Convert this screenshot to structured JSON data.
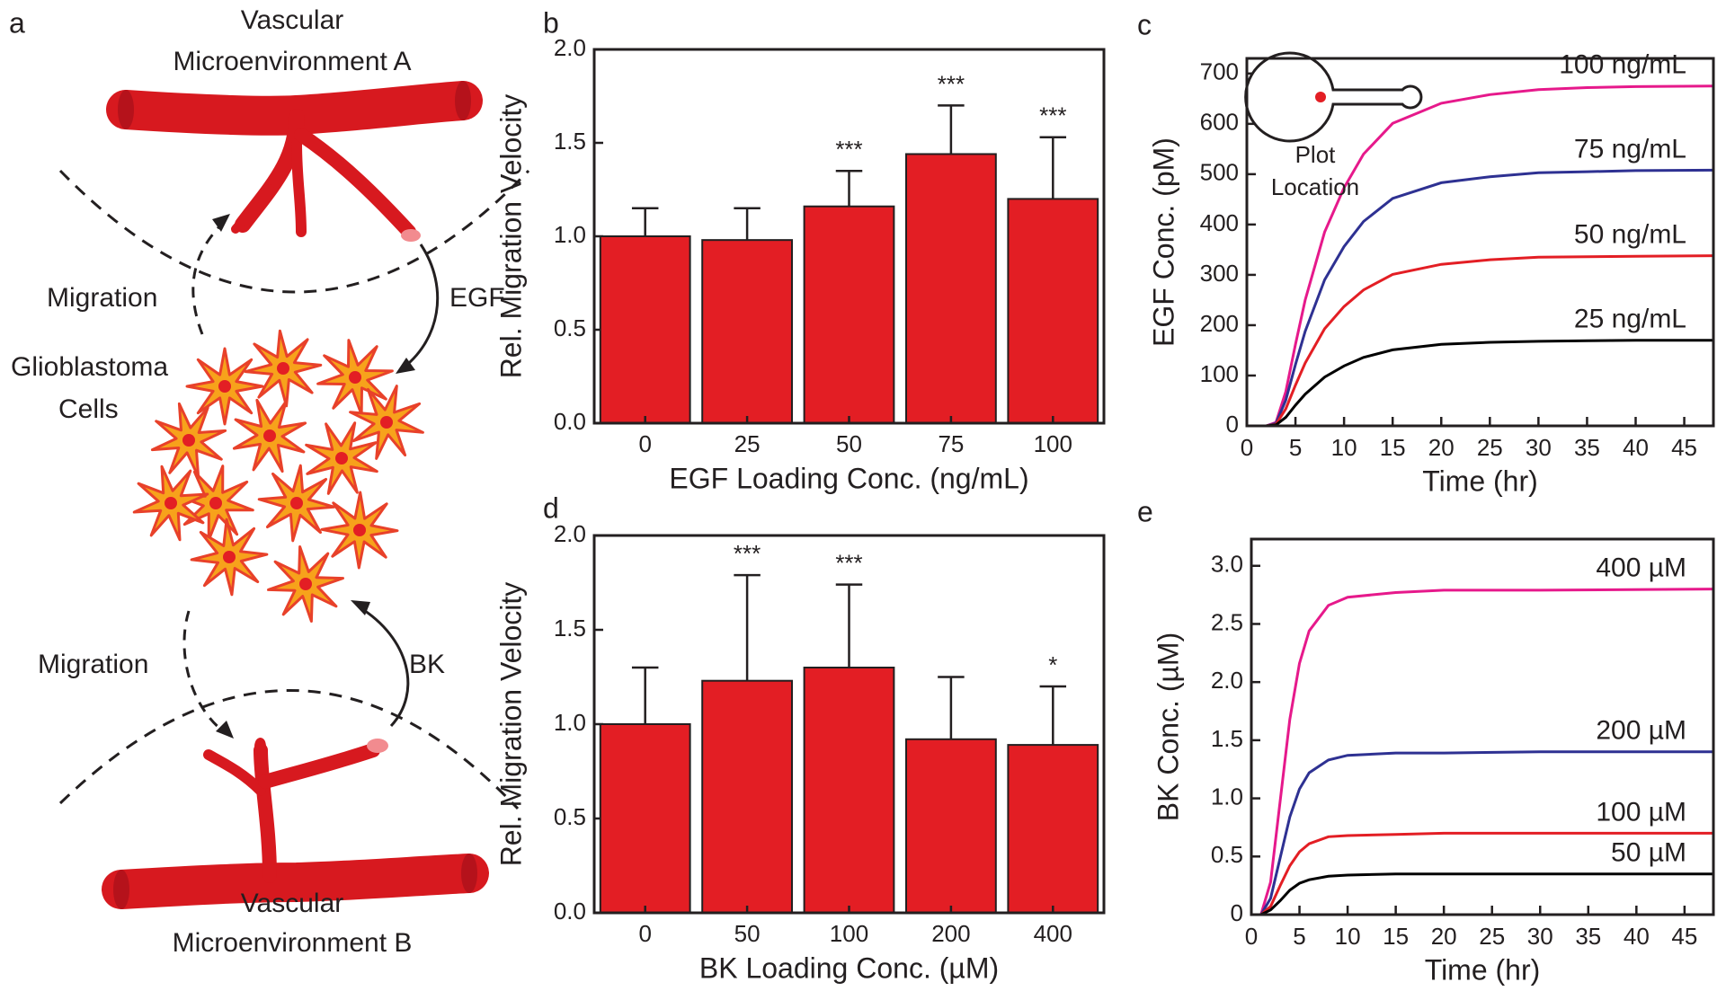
{
  "panel_a": {
    "label": "a",
    "top_vessel": [
      "Vascular",
      "Microenvironment A"
    ],
    "migration_top": "Migration",
    "egf": "EGF",
    "cells": [
      "Glioblastoma",
      "Cells"
    ],
    "migration_bottom": "Migration",
    "bk": "BK",
    "bottom_vessel": [
      "Vascular",
      "Microenvironment B"
    ]
  },
  "chart_data": [
    {
      "type": "bar",
      "label": "b",
      "categories": [
        "0",
        "25",
        "50",
        "75",
        "100"
      ],
      "values": [
        1.0,
        0.98,
        1.16,
        1.44,
        1.2
      ],
      "errors": [
        0.15,
        0.17,
        0.19,
        0.26,
        0.33
      ],
      "significance": [
        null,
        null,
        "***",
        "***",
        "***"
      ],
      "color": "#e31e24",
      "x_label": "EGF Loading Conc. (ng/mL)",
      "y_label": "Rel. Migration Velocity",
      "ylim": [
        0,
        2.0
      ],
      "yticks": [
        {
          "value": 0,
          "label": "0.0"
        },
        0.5,
        {
          "value": 1,
          "label": "1.0"
        },
        1.5,
        {
          "value": 2,
          "label": "2.0"
        }
      ]
    },
    {
      "type": "line",
      "label": "c",
      "x_label": "Time (hr)",
      "y_label": "EGF Conc. (pM)",
      "inset_label": [
        "Plot",
        "Location"
      ],
      "inset_color": "#e31e24",
      "x": [
        0,
        2,
        3,
        4,
        5,
        6,
        8,
        10,
        12,
        15,
        20,
        25,
        30,
        35,
        40,
        48
      ],
      "series": [
        {
          "name": "100 ng/mL",
          "color": "#e6198b",
          "values": [
            0,
            0,
            7,
            68,
            162,
            250,
            385,
            473,
            540,
            601,
            641,
            658,
            668,
            672,
            674,
            675
          ]
        },
        {
          "name": "75 ng/mL",
          "color": "#2e3192",
          "values": [
            0,
            0,
            5,
            51,
            122,
            188,
            290,
            356,
            406,
            452,
            483,
            495,
            503,
            505,
            507,
            508
          ]
        },
        {
          "name": "50 ng/mL",
          "color": "#e31e24",
          "values": [
            0,
            0,
            3,
            34,
            81,
            125,
            193,
            237,
            270,
            301,
            321,
            330,
            335,
            336,
            337,
            338
          ]
        },
        {
          "name": "25 ng/mL",
          "color": "#000000",
          "values": [
            0,
            0,
            2,
            17,
            41,
            63,
            97,
            119,
            136,
            151,
            162,
            166,
            168,
            169,
            170,
            170
          ]
        }
      ],
      "xlim": [
        0,
        48
      ],
      "xticks": [
        0,
        5,
        10,
        15,
        20,
        25,
        30,
        35,
        40,
        45
      ],
      "ylim": [
        0,
        730
      ],
      "yticks": [
        0,
        100,
        200,
        300,
        400,
        500,
        600,
        700
      ]
    },
    {
      "type": "bar",
      "label": "d",
      "categories": [
        "0",
        "50",
        "100",
        "200",
        "400"
      ],
      "values": [
        1.0,
        1.23,
        1.3,
        0.92,
        0.89
      ],
      "errors": [
        0.3,
        0.56,
        0.44,
        0.33,
        0.31
      ],
      "significance": [
        null,
        "***",
        "***",
        null,
        "*"
      ],
      "color": "#e31e24",
      "x_label": "BK Loading Conc. (µM)",
      "y_label": "Rel. Migration Velocity",
      "ylim": [
        0,
        2.0
      ],
      "yticks": [
        {
          "value": 0,
          "label": "0.0"
        },
        0.5,
        {
          "value": 1,
          "label": "1.0"
        },
        1.5,
        {
          "value": 2,
          "label": "2.0"
        }
      ]
    },
    {
      "type": "line",
      "label": "e",
      "x_label": "Time (hr)",
      "y_label": "BK Conc. (µM)",
      "x": [
        0,
        1,
        2,
        3,
        4,
        5,
        6,
        8,
        10,
        15,
        20,
        30,
        48
      ],
      "series": [
        {
          "name": "400 µM",
          "color": "#e6198b",
          "values": [
            0,
            0,
            0.28,
            0.98,
            1.68,
            2.16,
            2.44,
            2.66,
            2.73,
            2.77,
            2.79,
            2.79,
            2.8
          ]
        },
        {
          "name": "200 µM",
          "color": "#2e3192",
          "values": [
            0,
            0,
            0.14,
            0.49,
            0.84,
            1.08,
            1.22,
            1.33,
            1.37,
            1.39,
            1.39,
            1.4,
            1.4
          ]
        },
        {
          "name": "100 µM",
          "color": "#e31e24",
          "values": [
            0,
            0,
            0.07,
            0.25,
            0.42,
            0.54,
            0.61,
            0.67,
            0.68,
            0.69,
            0.7,
            0.7,
            0.7
          ]
        },
        {
          "name": "50 µM",
          "color": "#000000",
          "values": [
            0,
            0,
            0.04,
            0.12,
            0.21,
            0.27,
            0.3,
            0.33,
            0.34,
            0.35,
            0.35,
            0.35,
            0.35
          ]
        }
      ],
      "xlim": [
        0,
        48
      ],
      "xticks": [
        0,
        5,
        10,
        15,
        20,
        25,
        30,
        35,
        40,
        45
      ],
      "ylim": [
        0,
        3.23
      ],
      "yticks": [
        0,
        0.5,
        {
          "value": 1,
          "label": "1.0"
        },
        1.5,
        {
          "value": 2,
          "label": "2.0"
        },
        2.5,
        {
          "value": 3,
          "label": "3.0"
        }
      ]
    }
  ]
}
